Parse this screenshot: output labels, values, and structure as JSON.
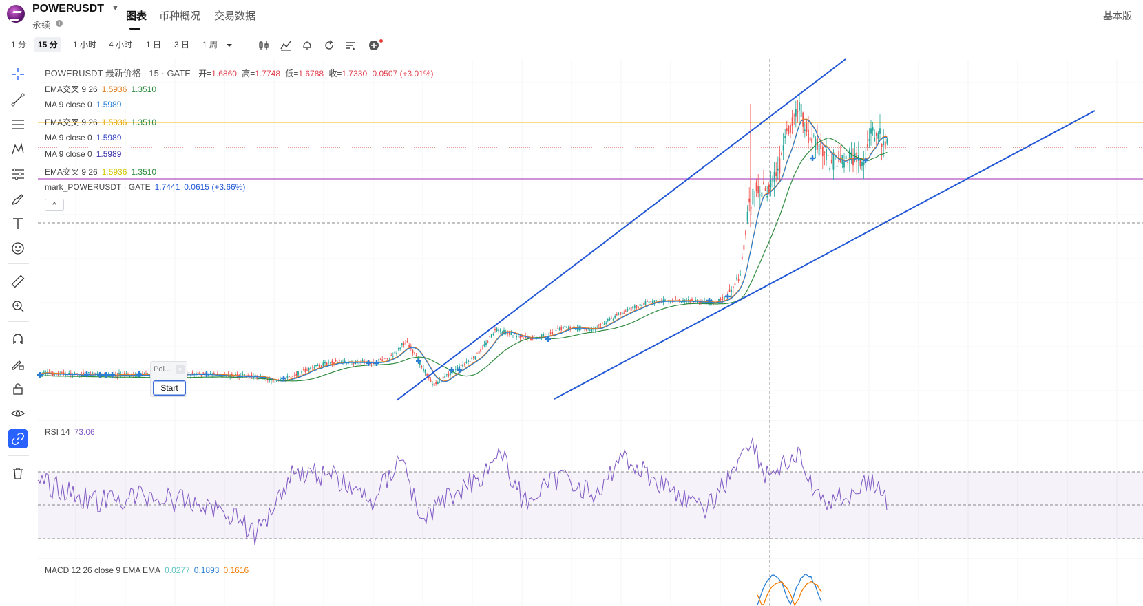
{
  "header": {
    "symbol": "POWERUSDT",
    "contract_type": "永续",
    "tabs": [
      "图表",
      "币种概况",
      "交易数据"
    ],
    "basic_version": "基本版"
  },
  "toolbar": {
    "timeframes": [
      "1 分",
      "15 分",
      "1 小时",
      "4 小时",
      "1 日",
      "3 日",
      "1 周"
    ],
    "active_timeframe": "15 分"
  },
  "legend": {
    "title": "POWERUSDT 最新价格 · 15 · GATE",
    "ohlc": {
      "open_label": "开=",
      "open": "1.6860",
      "high_label": "高=",
      "high": "1.7748",
      "low_label": "低=",
      "low": "1.6788",
      "close_label": "收=",
      "close": "1.7330",
      "change": "0.0507 (+3.01%)"
    },
    "indicators": [
      {
        "label": "EMA交叉 9 26",
        "v1": "1.5936",
        "v2": "1.3510",
        "c1": "#e67e22",
        "c2": "#2e8b3e"
      },
      {
        "label": "MA 9 close 0",
        "v1": "1.5989",
        "c1": "#2a7fd4"
      },
      {
        "label": "EMA交叉 9 26",
        "v1": "1.5936",
        "v2": "1.3510",
        "c1": "#e6a800",
        "c2": "#2e8b3e"
      },
      {
        "label": "MA 9 close 0",
        "v1": "1.5989",
        "c1": "#3040c0"
      },
      {
        "label": "MA 9 close 0",
        "v1": "1.5989",
        "c1": "#3a2fa8"
      },
      {
        "label": "EMA交叉 9 26",
        "v1": "1.5936",
        "v2": "1.3510",
        "c1": "#e6e600",
        "c2": "#2e8b3e"
      }
    ],
    "mark": {
      "label": "mark_POWERUSDT · GATE",
      "value": "1.7441",
      "change": "0.0615 (+3.66%)"
    }
  },
  "collapse_label": "^",
  "poi": {
    "label": "Poi...",
    "start": "Start"
  },
  "rsi": {
    "label": "RSI 14",
    "value": "73.06"
  },
  "macd": {
    "label": "MACD 12 26 close 9 EMA EMA",
    "v1": "0.0277",
    "v2": "0.1893",
    "v3": "0.1616"
  },
  "colors": {
    "up": "#26a69a",
    "down": "#ef5350",
    "trendline": "#2157d6",
    "rsi": "#7e57c2",
    "accent": "#2962ff"
  }
}
